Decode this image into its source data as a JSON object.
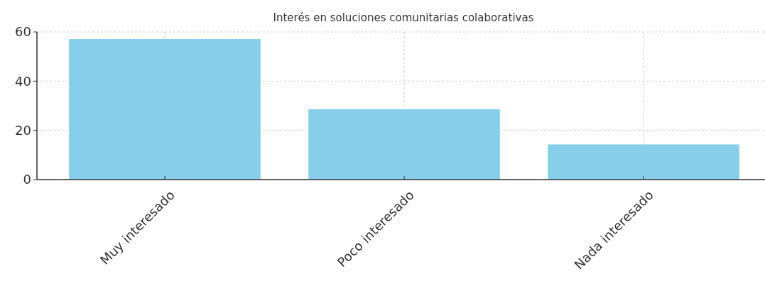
{
  "chart_data": {
    "type": "bar",
    "title": "Interés en soluciones comunitarias colaborativas",
    "categories": [
      "Muy interesado",
      "Poco interesado",
      "Nada interesado"
    ],
    "values": [
      57.1,
      28.6,
      14.3
    ],
    "color": "#87ceeb",
    "ylim": [
      0,
      60
    ],
    "yticks": [
      0,
      20,
      40,
      60
    ],
    "grid": true
  }
}
